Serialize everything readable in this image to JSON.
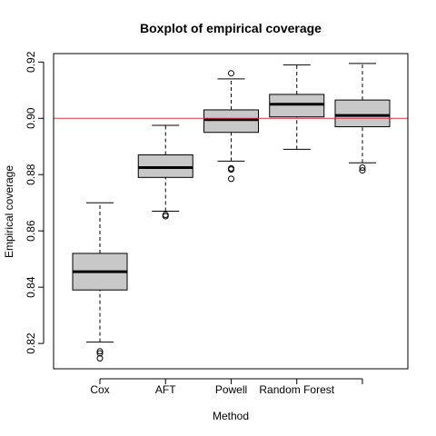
{
  "chart_data": {
    "type": "boxplot",
    "title": "Boxplot of empirical coverage",
    "xlabel": "Method",
    "ylabel": "Empirical coverage",
    "categories": [
      "Cox",
      "AFT",
      "Powell",
      "Random Forest",
      ""
    ],
    "ylim": [
      0.811,
      0.923
    ],
    "yticks": [
      0.82,
      0.84,
      0.86,
      0.88,
      0.9,
      0.92
    ],
    "ytick_labels": [
      "0.82",
      "0.84",
      "0.86",
      "0.88",
      "0.90",
      "0.92"
    ],
    "reference_line": {
      "y": 0.9,
      "color": "#e0303a"
    },
    "box_fill": "#c8c8c8",
    "grid": false,
    "boxes": [
      {
        "whisker_low": 0.8205,
        "q1": 0.839,
        "median": 0.8455,
        "q3": 0.852,
        "whisker_high": 0.87,
        "outliers": [
          0.8165,
          0.8172,
          0.8147
        ]
      },
      {
        "whisker_low": 0.867,
        "q1": 0.879,
        "median": 0.8825,
        "q3": 0.887,
        "whisker_high": 0.8975,
        "outliers": [
          0.8652,
          0.8657
        ]
      },
      {
        "whisker_low": 0.8848,
        "q1": 0.895,
        "median": 0.8995,
        "q3": 0.903,
        "whisker_high": 0.914,
        "outliers": [
          0.916,
          0.8822,
          0.8818,
          0.8785
        ]
      },
      {
        "whisker_low": 0.889,
        "q1": 0.9005,
        "median": 0.905,
        "q3": 0.9085,
        "whisker_high": 0.919,
        "outliers": []
      },
      {
        "whisker_low": 0.8842,
        "q1": 0.897,
        "median": 0.901,
        "q3": 0.9065,
        "whisker_high": 0.9195,
        "outliers": [
          0.8825,
          0.8815
        ]
      }
    ]
  }
}
